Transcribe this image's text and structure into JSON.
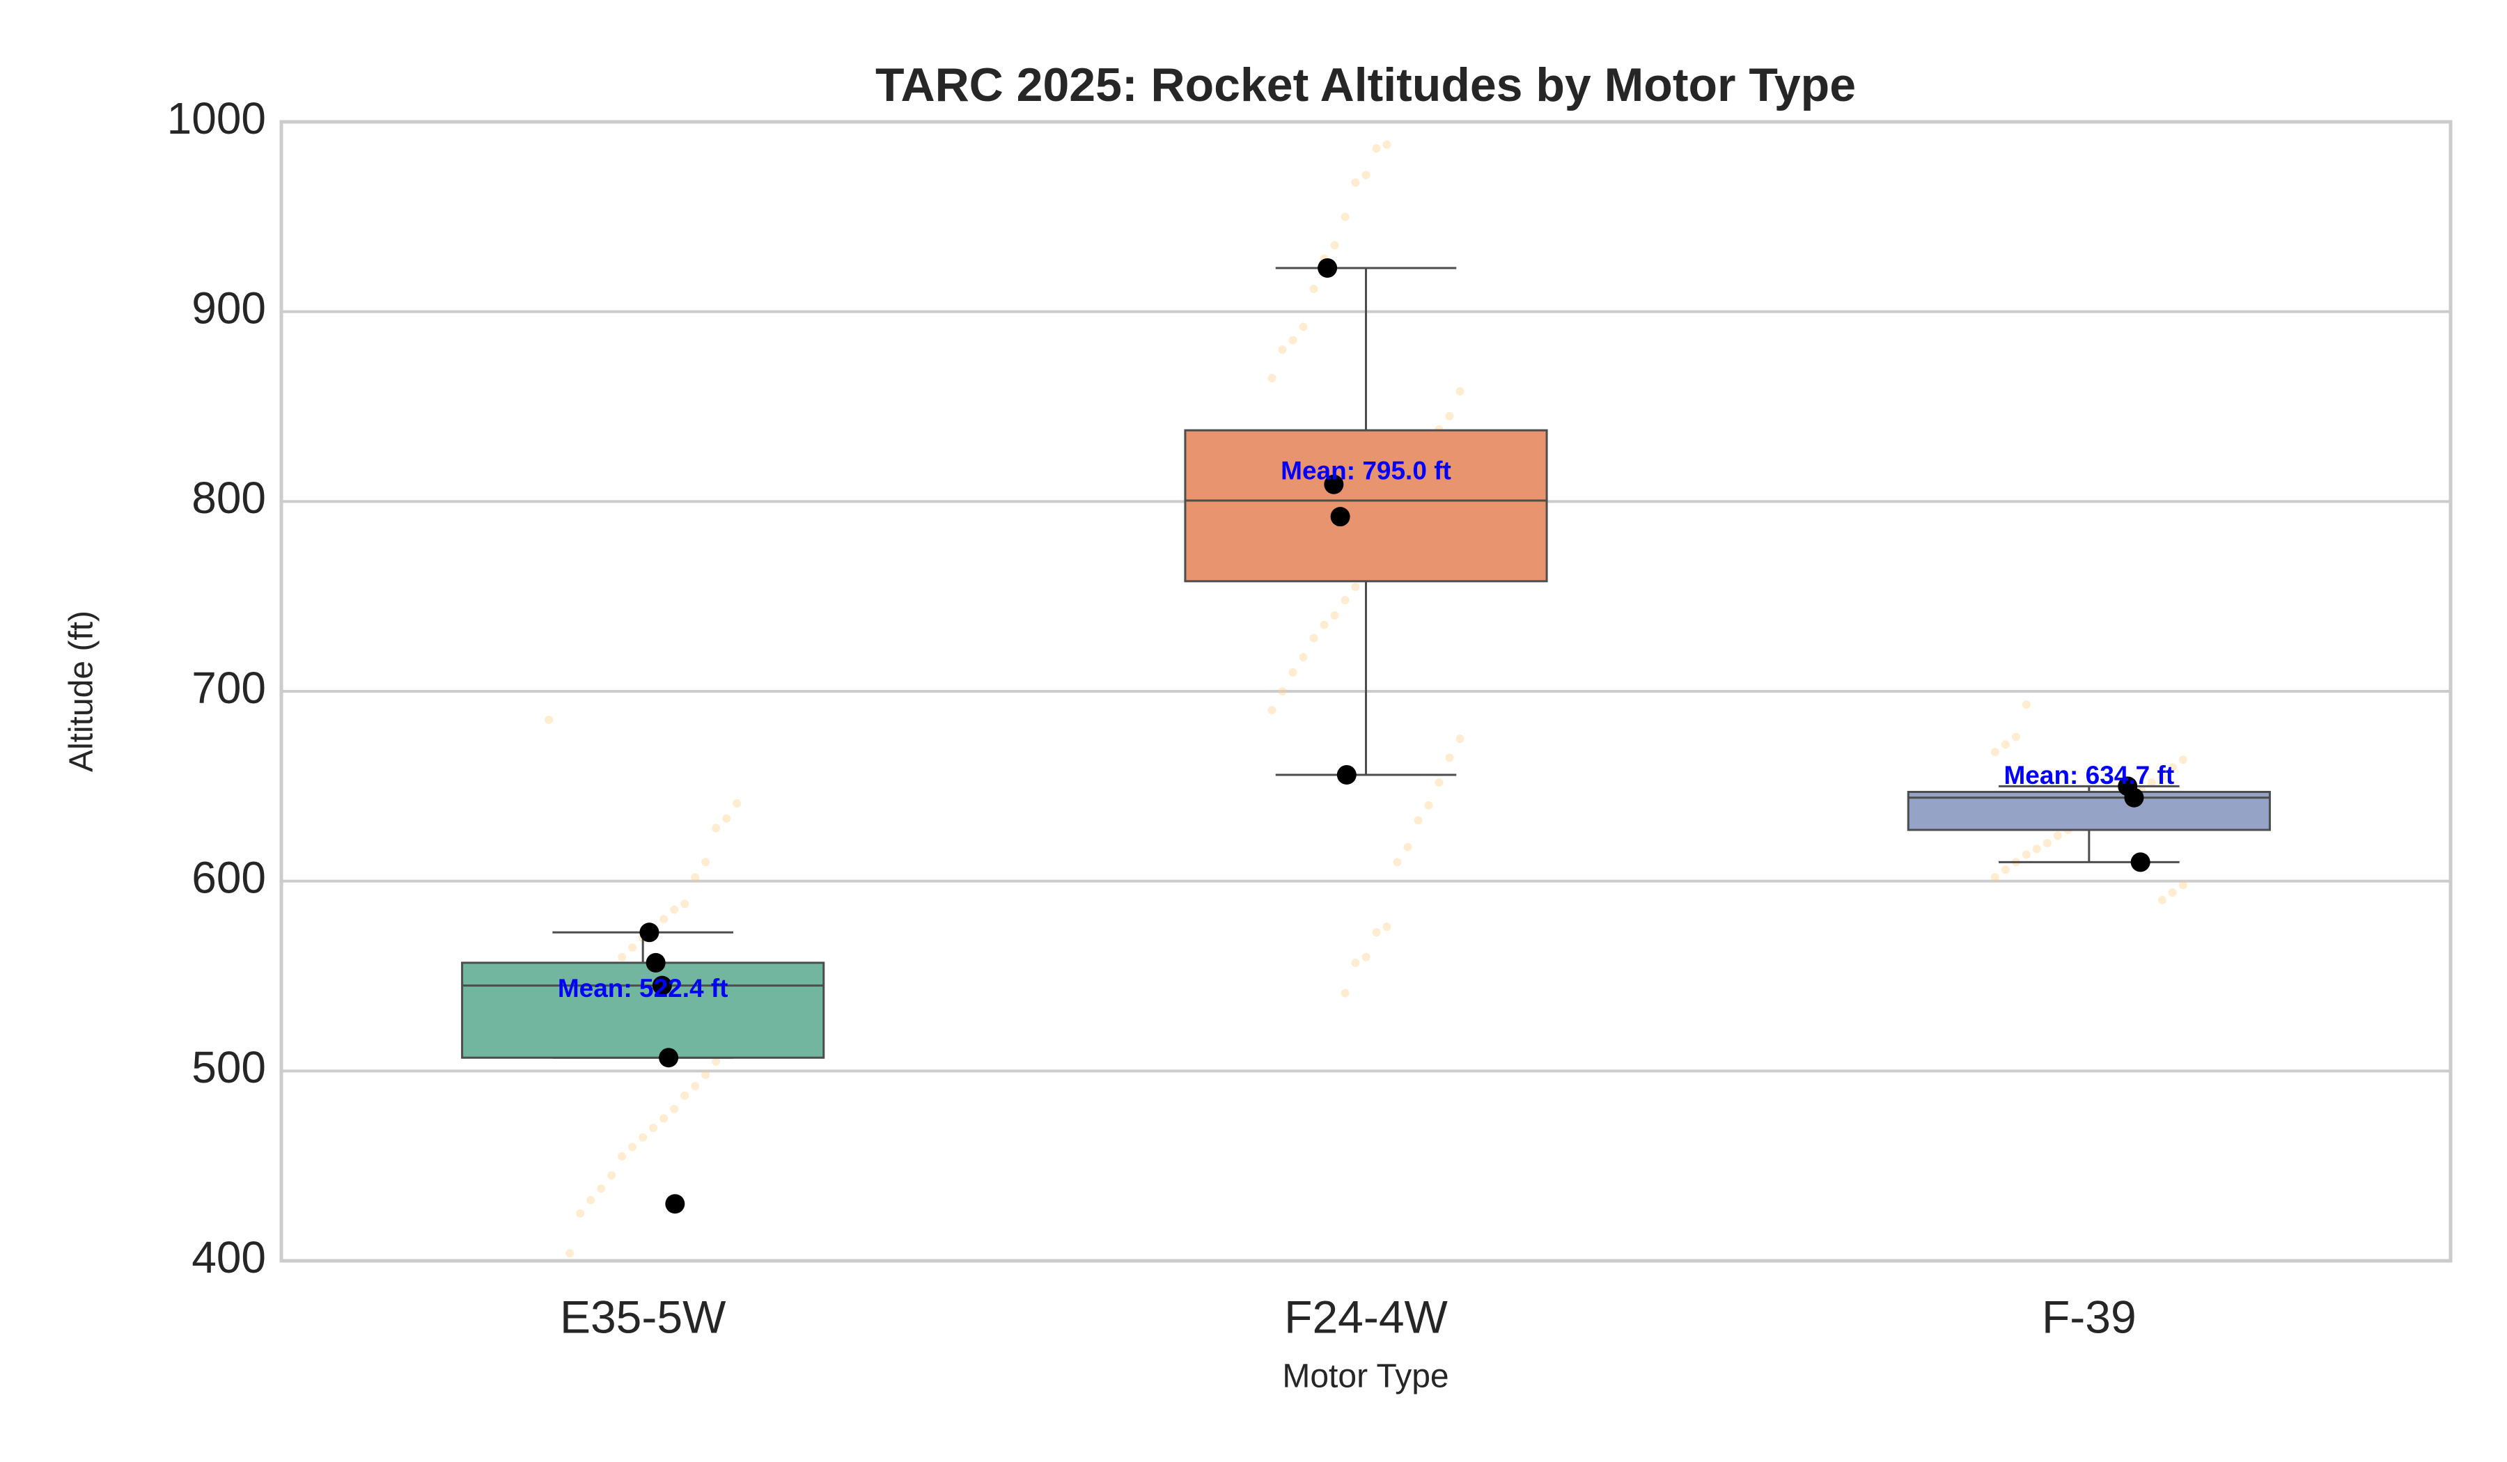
{
  "chart_data": {
    "type": "box",
    "title": "TARC 2025: Rocket Altitudes by Motor Type",
    "x_label": "Motor Type",
    "y_label": "Altitude (ft)",
    "categories": [
      "E35-5W",
      "F24-4W",
      "F-39"
    ],
    "box_colors": [
      "#72b6a0",
      "#e8956f",
      "#95a3c6"
    ],
    "boxes": [
      {
        "whisker_low": 507,
        "q1": 507,
        "median": 545,
        "q3": 557,
        "whisker_high": 573
      },
      {
        "whisker_low": 656,
        "q1": 758,
        "median": 800.5,
        "q3": 837.5,
        "whisker_high": 923
      },
      {
        "whisker_low": 610,
        "q1": 627,
        "median": 644,
        "q3": 647,
        "whisker_high": 650
      }
    ],
    "points": [
      [
        430,
        507,
        545,
        557,
        573
      ],
      [
        656,
        792,
        809,
        923
      ],
      [
        610,
        644,
        650
      ]
    ],
    "point_color": "#000000",
    "background_points": [
      [
        685,
        641,
        633,
        628,
        610,
        602,
        588,
        585,
        580,
        575,
        570,
        565,
        560,
        552,
        545,
        540,
        535,
        530,
        525,
        520,
        515,
        510,
        505,
        498,
        492,
        487,
        480,
        475,
        470,
        465,
        460,
        455,
        445,
        438,
        432,
        425,
        404
      ],
      [
        988,
        986,
        972,
        968,
        950,
        935,
        928,
        912,
        892,
        885,
        880,
        865,
        858,
        845,
        838,
        825,
        815,
        805,
        795,
        785,
        775,
        765,
        755,
        748,
        740,
        735,
        728,
        718,
        710,
        700,
        690,
        675,
        665,
        652,
        640,
        632,
        618,
        610,
        576,
        573,
        560,
        557,
        541
      ],
      [
        693,
        676,
        672,
        668,
        664,
        660,
        655,
        652,
        648,
        645,
        642,
        640,
        637,
        634,
        630,
        627,
        624,
        620,
        617,
        614,
        610,
        606,
        602,
        598,
        594,
        590
      ]
    ],
    "background_point_color": "#ffc87a",
    "means": [
      522.4,
      795.0,
      634.7
    ],
    "mean_labels": [
      "Mean: 522.4 ft",
      "Mean: 795.0 ft",
      "Mean: 634.7 ft"
    ],
    "mean_label_color": "#0000ff",
    "ylim": [
      400,
      1000
    ],
    "yticks": [
      400,
      500,
      600,
      700,
      800,
      900,
      1000
    ],
    "grid": true
  }
}
